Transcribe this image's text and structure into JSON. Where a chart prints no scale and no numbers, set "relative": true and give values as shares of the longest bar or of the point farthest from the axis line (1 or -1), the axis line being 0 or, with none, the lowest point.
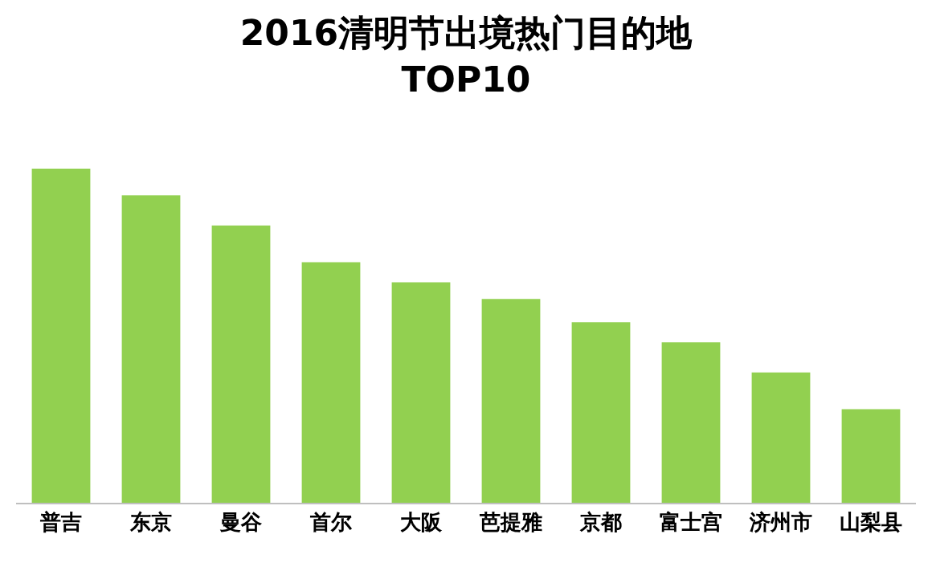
{
  "chart_data": {
    "type": "bar",
    "title": "2016清明节出境热门目的地\nTOP10",
    "relative": true,
    "categories": [
      "普吉",
      "东京",
      "曼谷",
      "首尔",
      "大阪",
      "芭提雅",
      "京都",
      "富士宫",
      "济州市",
      "山梨县"
    ],
    "values": [
      1,
      0.92,
      0.83,
      0.72,
      0.66,
      0.61,
      0.54,
      0.48,
      0.39,
      0.28
    ],
    "color": "#92d050"
  }
}
